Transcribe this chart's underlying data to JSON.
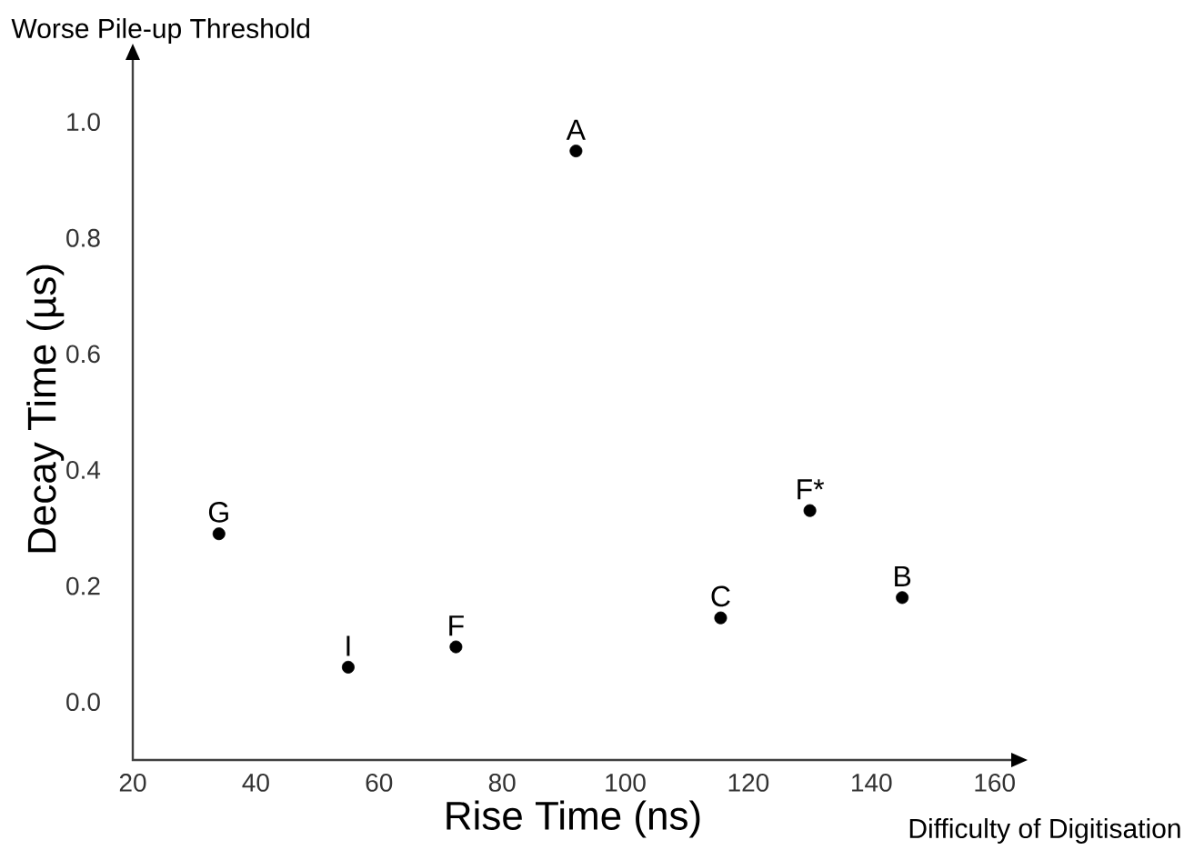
{
  "chart_data": {
    "type": "scatter",
    "xlabel": "Rise Time (ns)",
    "ylabel": "Decay Time (µs)",
    "x": [
      92,
      34,
      55,
      72.5,
      115.5,
      130,
      145
    ],
    "values": [
      0.95,
      0.29,
      0.06,
      0.095,
      0.145,
      0.33,
      0.18
    ],
    "color": "#000000",
    "marker": "circle",
    "xlim": [
      20,
      163
    ],
    "ylim": [
      -0.1,
      1.11
    ],
    "xticks": [
      20,
      40,
      60,
      80,
      100,
      120,
      140,
      160
    ],
    "yticks": [
      {
        "value": 0,
        "label": "0.0"
      },
      {
        "value": 0.2,
        "label": "0.2"
      },
      {
        "value": 0.4,
        "label": "0.4"
      },
      {
        "value": 0.6,
        "label": "0.6"
      },
      {
        "value": 0.8,
        "label": "0.8"
      },
      {
        "value": 1,
        "label": "1.0"
      }
    ],
    "annotations": [
      {
        "text": "A",
        "x": 92,
        "y": 0.95
      },
      {
        "text": "G",
        "x": 34,
        "y": 0.29
      },
      {
        "text": "I",
        "x": 55,
        "y": 0.06
      },
      {
        "text": "F",
        "x": 72.5,
        "y": 0.095
      },
      {
        "text": "C",
        "x": 115.5,
        "y": 0.145
      },
      {
        "text": "F*",
        "x": 130,
        "y": 0.33
      },
      {
        "text": "B",
        "x": 145,
        "y": 0.18
      },
      "Worse Pile-up Threshold",
      "Difficulty of Digitisation"
    ]
  }
}
